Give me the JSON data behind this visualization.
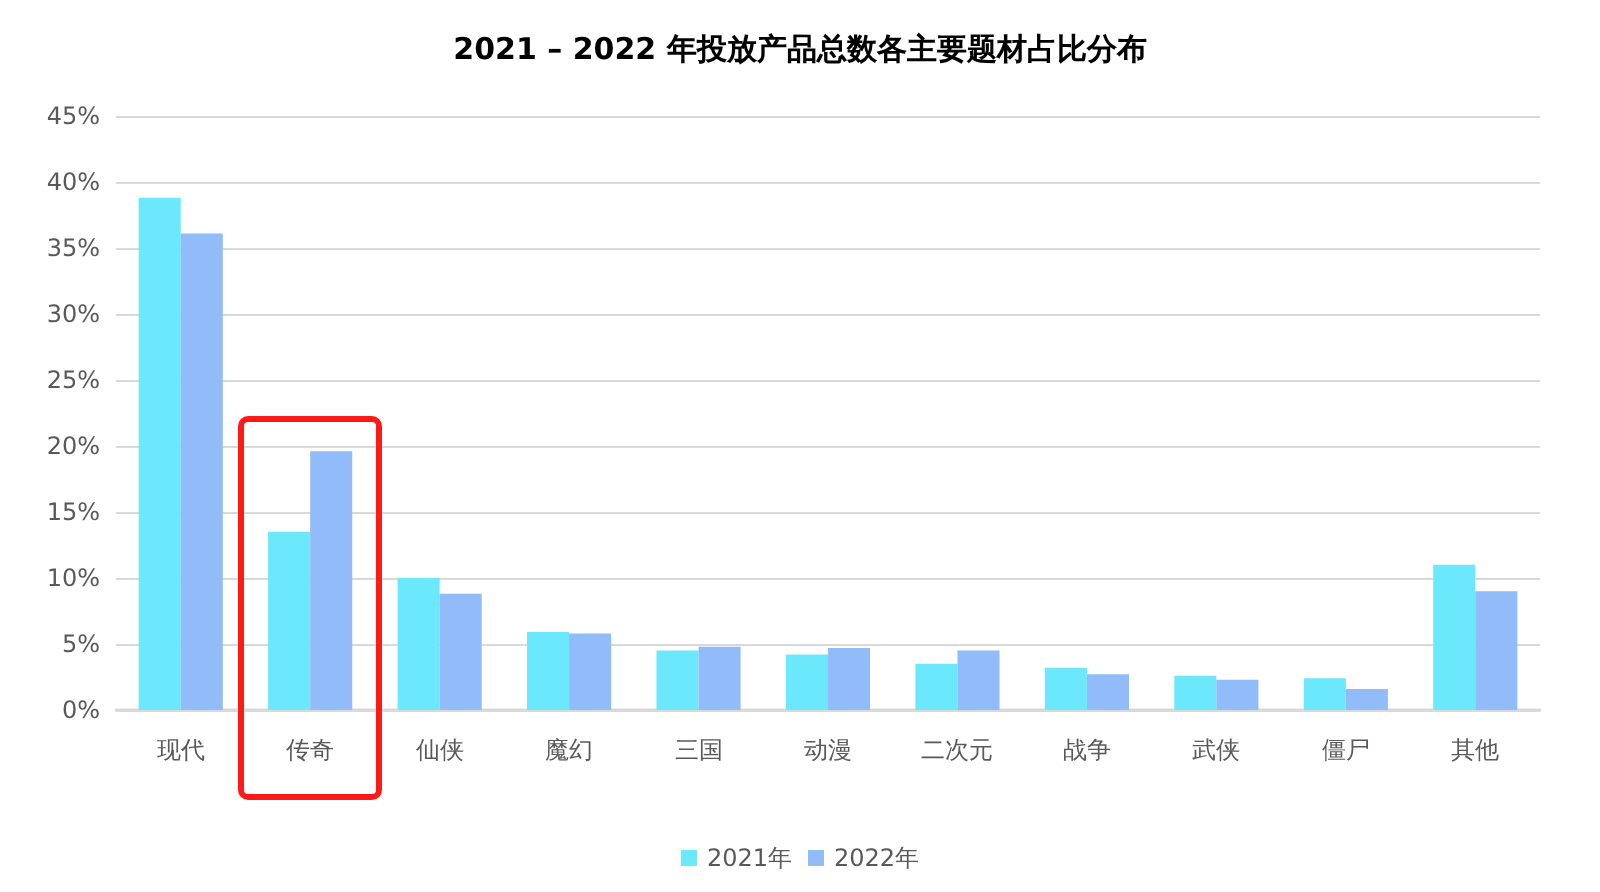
{
  "chart_data": {
    "type": "bar",
    "title": "2021 – 2022 年投放产品总数各主要题材占比分布",
    "categories": [
      "现代",
      "传奇",
      "仙侠",
      "魔幻",
      "三国",
      "动漫",
      "二次元",
      "战争",
      "武侠",
      "僵尸",
      "其他"
    ],
    "series": [
      {
        "name": "2021年",
        "color": "#6be8fc",
        "values": [
          38.8,
          13.5,
          10.0,
          5.9,
          4.5,
          4.2,
          3.5,
          3.2,
          2.6,
          2.4,
          11.0
        ]
      },
      {
        "name": "2022年",
        "color": "#91bbf9",
        "values": [
          36.1,
          19.6,
          8.8,
          5.8,
          4.8,
          4.7,
          4.5,
          2.7,
          2.3,
          1.6,
          9.0
        ]
      }
    ],
    "ylim": [
      0,
      45
    ],
    "yticks": [
      {
        "value": 0,
        "label": "0%"
      },
      {
        "value": 5,
        "label": "5%"
      },
      {
        "value": 10,
        "label": "10%"
      },
      {
        "value": 15,
        "label": "15%"
      },
      {
        "value": 20,
        "label": "20%"
      },
      {
        "value": 25,
        "label": "25%"
      },
      {
        "value": 30,
        "label": "30%"
      },
      {
        "value": 35,
        "label": "35%"
      },
      {
        "value": 40,
        "label": "40%"
      },
      {
        "value": 45,
        "label": "45%"
      }
    ],
    "grid": "y",
    "legend": "bottom"
  }
}
